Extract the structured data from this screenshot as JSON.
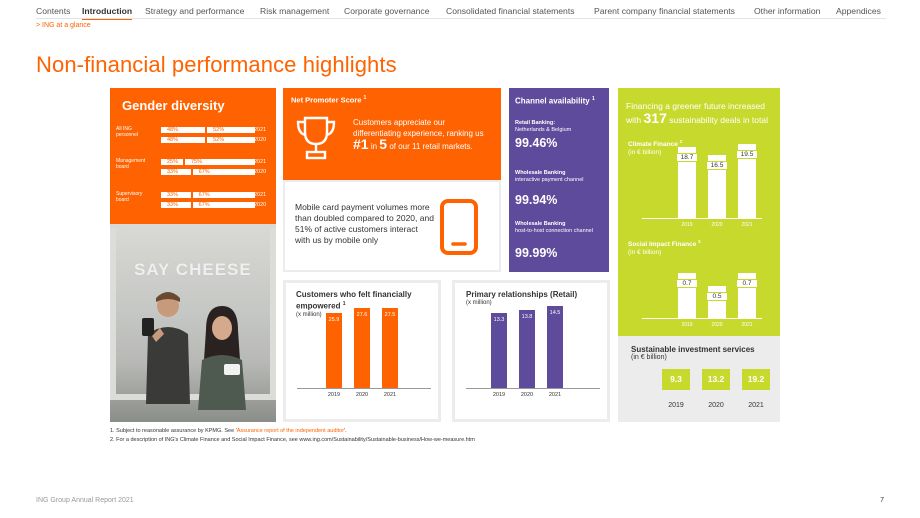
{
  "nav": {
    "items": [
      "Contents",
      "Introduction",
      "Strategy and performance",
      "Risk management",
      "Corporate governance",
      "Consolidated financial statements",
      "Parent company financial statements",
      "Other information",
      "Appendices"
    ],
    "active": "Introduction"
  },
  "breadcrumb": "> ING at a glance",
  "page_title": "Non-financial performance highlights",
  "gender": {
    "title": "Gender diversity",
    "groups": [
      {
        "label": "All ING personnel",
        "rows": [
          {
            "a": "48%",
            "b": "52%",
            "year": "2021"
          },
          {
            "a": "48%",
            "b": "52%",
            "year": "2020"
          }
        ]
      },
      {
        "label": "Management board",
        "rows": [
          {
            "a": "25%",
            "b": "75%",
            "year": "2021"
          },
          {
            "a": "33%",
            "b": "67%",
            "year": "2020"
          }
        ]
      },
      {
        "label": "Supervisory board",
        "rows": [
          {
            "a": "33%",
            "b": "67%",
            "year": "2021"
          },
          {
            "a": "33%",
            "b": "67%",
            "year": "2020"
          }
        ]
      }
    ]
  },
  "photo": {
    "caption": "SAY CHEESE"
  },
  "nps": {
    "title": "Net Promoter Score",
    "sup": "1",
    "text_pre": "Customers appreciate our differentiating experience, ranking us",
    "rank": "#1",
    "in": "in",
    "count": "5",
    "text_post": "of our 11 retail markets."
  },
  "mobile": {
    "text": "Mobile card payment volumes more than doubled compared to 2020, and 51% of active customers interact with us by mobile only"
  },
  "channel": {
    "title": "Channel availability",
    "sup": "1",
    "items": [
      {
        "head": "Retail Banking:",
        "sub": "Netherlands & Belgium",
        "value": "99.46%"
      },
      {
        "head": "Wholesale Banking",
        "sub": "interactive payment channel",
        "value": "99.94%"
      },
      {
        "head": "Wholesale Banking",
        "sub": "host-to-host connection channel",
        "value": "99.99%"
      }
    ]
  },
  "chart_data": [
    {
      "type": "bar",
      "title": "Customers who felt financially empowered",
      "title_sup": "1",
      "subtitle": "(x million)",
      "categories": [
        "2019",
        "2020",
        "2021"
      ],
      "values": [
        25.9,
        27.6,
        27.5
      ],
      "color": "#ff6200",
      "ylim": [
        0,
        40
      ]
    },
    {
      "type": "bar",
      "title": "Primary relationships (Retail)",
      "subtitle": "(x million)",
      "categories": [
        "2019",
        "2020",
        "2021"
      ],
      "values": [
        13.3,
        13.8,
        14.5
      ],
      "color": "#5f4b9b",
      "ylim": [
        0,
        22
      ]
    },
    {
      "type": "bar",
      "title": "Climate Finance",
      "title_sup": "2",
      "subtitle": "(in € billion)",
      "categories": [
        "2019",
        "2020",
        "2021"
      ],
      "values": [
        18.7,
        16.5,
        19.5
      ],
      "color": "#ffffff",
      "ylim": [
        0,
        30
      ]
    },
    {
      "type": "bar",
      "title": "Social Impact Finance",
      "title_sup": "2",
      "subtitle": "(in € billion)",
      "categories": [
        "2019",
        "2020",
        "2021"
      ],
      "values": [
        0.7,
        0.5,
        0.7
      ],
      "color": "#ffffff",
      "ylim": [
        0,
        1.2
      ]
    }
  ],
  "greener": {
    "line1": "Financing a greener future increased",
    "with": "with",
    "count": "317",
    "rest": "sustainability deals in total"
  },
  "sis": {
    "title": "Sustainable investment services",
    "subtitle": "(in € billion)",
    "values": [
      "9.3",
      "13.2",
      "19.2"
    ],
    "years": [
      "2019",
      "2020",
      "2021"
    ]
  },
  "footnotes": {
    "f1_pre": "1. Subject to reasonable assurance by KPMG. See '",
    "f1_link": "Assurance report of the independent auditor",
    "f1_post": "'.",
    "f2": "2. For a description of ING's Climate Finance and Social Impact Finance, see www.ing.com/Sustainability/Sustainable-business/How-we-measure.htm"
  },
  "footer": {
    "left": "ING Group Annual Report 2021",
    "page": "7"
  },
  "colors": {
    "accent": "#ff6200",
    "purple": "#5f4b9b",
    "lime": "#c8d92e"
  }
}
